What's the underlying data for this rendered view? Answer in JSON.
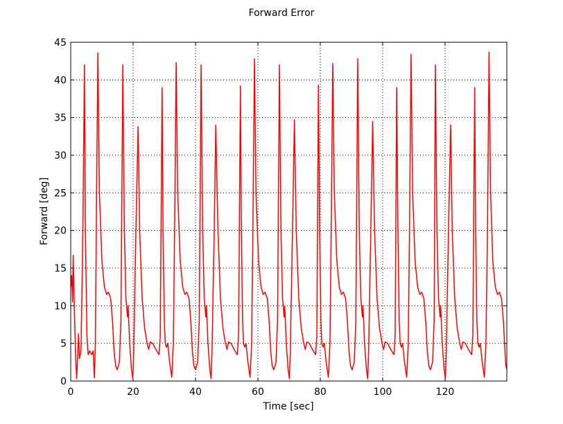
{
  "chart_data": {
    "type": "line",
    "title": "Forward Error",
    "xlabel": "Time [sec]",
    "ylabel": "Forward [deg]",
    "xlim": [
      0,
      139.8
    ],
    "ylim": [
      0,
      45
    ],
    "xticks": [
      0,
      20,
      40,
      60,
      80,
      100,
      120
    ],
    "yticks": [
      0,
      5,
      10,
      15,
      20,
      25,
      30,
      35,
      40,
      45
    ],
    "grid": true,
    "series": [
      {
        "color": "#ff0000",
        "x": [
          0,
          0.3,
          0.6,
          0.8,
          1.2,
          1.6,
          1.9,
          2.2,
          2.5,
          2.8,
          3.3,
          3.9,
          4.4,
          4.7,
          5.2,
          5.6,
          6.1,
          6.8,
          7.2,
          7.6,
          7.9,
          8.2,
          8.7,
          9.2,
          10.0,
          10.8,
          11.5,
          12.1,
          12.8,
          13.4,
          13.9,
          14.4,
          14.9,
          15.6,
          16.1,
          16.7,
          17.2,
          17.7,
          18.2,
          18.4,
          18.9,
          19.5,
          19.9,
          20.2,
          20.9,
          21.6,
          22.1,
          22.9,
          23.7,
          24.5,
          25.0,
          25.5,
          26.3,
          27.3,
          28.3,
          28.7,
          29.3,
          29.6,
          30.0,
          30.3,
          30.7,
          31.1,
          31.7,
          32.4,
          32.9,
          33.3,
          33.8,
          34.3,
          35.1,
          35.9,
          36.6,
          37.2,
          37.9,
          38.5,
          39.0,
          39.5,
          40.0,
          40.7,
          41.2,
          41.8,
          42.3,
          42.8,
          43.3,
          43.5,
          44.0,
          44.6,
          45.0,
          45.3,
          46.0,
          46.5,
          47.2,
          48.0,
          48.8,
          49.6,
          50.1,
          50.6,
          51.4,
          52.4,
          53.4,
          53.8,
          54.4,
          54.7,
          55.1,
          55.4,
          55.8,
          56.2,
          56.8,
          57.5,
          58.0,
          58.4,
          58.9,
          59.4,
          60.2,
          61.0,
          61.7,
          62.3,
          63.0,
          63.6,
          64.1,
          64.6,
          65.1,
          65.8,
          66.3,
          66.9,
          67.4,
          67.9,
          68.4,
          68.6,
          69.1,
          69.7,
          70.1,
          70.4,
          71.1,
          71.7,
          72.3,
          73.1,
          73.9,
          74.7,
          75.2,
          75.7,
          76.5,
          77.5,
          78.5,
          78.9,
          79.4,
          79.8,
          80.2,
          80.5,
          80.9,
          81.3,
          81.9,
          82.6,
          83.1,
          83.5,
          84.0,
          84.5,
          85.3,
          86.1,
          86.8,
          87.4,
          88.1,
          88.7,
          89.2,
          89.7,
          90.2,
          90.9,
          91.4,
          92.0,
          92.5,
          93.0,
          93.5,
          93.7,
          94.2,
          94.8,
          95.2,
          95.5,
          96.2,
          96.8,
          97.4,
          98.2,
          99.0,
          99.8,
          100.3,
          100.8,
          101.6,
          102.6,
          103.6,
          104.0,
          104.5,
          104.9,
          105.3,
          105.6,
          106.0,
          106.4,
          107.0,
          107.7,
          108.2,
          108.6,
          109.1,
          109.6,
          110.4,
          111.2,
          111.9,
          112.5,
          113.2,
          113.8,
          114.3,
          114.8,
          115.3,
          116.0,
          116.5,
          116.9,
          117.4,
          117.9,
          118.4,
          118.6,
          119.1,
          119.7,
          120.1,
          120.4,
          121.1,
          121.8,
          122.3,
          123.1,
          123.9,
          124.7,
          125.2,
          125.7,
          126.5,
          127.5,
          128.5,
          128.9,
          129.5,
          129.8,
          130.2,
          130.5,
          130.9,
          131.3,
          131.9,
          132.6,
          133.1,
          133.6,
          134.1,
          134.6,
          135.3,
          136.1,
          136.8,
          137.4,
          138.1,
          138.7,
          139.2,
          139.5,
          139.8
        ],
        "values": [
          12.5,
          14,
          10.5,
          16.7,
          9,
          3,
          0.3,
          3,
          6.3,
          3,
          4,
          20,
          42,
          20,
          6,
          3.5,
          4,
          3.5,
          4,
          0.4,
          5,
          20,
          43.6,
          25,
          16,
          12.5,
          11.5,
          11.8,
          11,
          8,
          4,
          2,
          1.5,
          2.5,
          8,
          42,
          20,
          11,
          8.5,
          10,
          5,
          1.5,
          0.3,
          4,
          20,
          33.8,
          20,
          11,
          7,
          5,
          4.2,
          5.2,
          5,
          4.2,
          3.5,
          6,
          39,
          20,
          8,
          5,
          4.5,
          5,
          2.5,
          0.5,
          5,
          20,
          42.3,
          25,
          16,
          12.5,
          11.5,
          11.8,
          11,
          8,
          4,
          2,
          1.5,
          2.5,
          8,
          42,
          20,
          11,
          8.5,
          10,
          5,
          1.5,
          0.3,
          4,
          20,
          34,
          20,
          11,
          7,
          5,
          4.2,
          5.2,
          5,
          4.2,
          3.5,
          6,
          39.2,
          20,
          8,
          5,
          4.5,
          5,
          2.5,
          0.5,
          5,
          20,
          42.8,
          25,
          16,
          12.5,
          11.5,
          11.8,
          11,
          8,
          4,
          2,
          1.5,
          2.5,
          8,
          42,
          20,
          11,
          8.5,
          10,
          5,
          1.5,
          0.3,
          4,
          20,
          34.7,
          20,
          11,
          7,
          5,
          4.2,
          5.2,
          5,
          4.2,
          3.5,
          6,
          39.3,
          20,
          8,
          5,
          4.5,
          5,
          2.5,
          0.5,
          5,
          20,
          42.2,
          25,
          16,
          12.5,
          11.5,
          11.8,
          11,
          8,
          4,
          2,
          1.5,
          2.5,
          8,
          42.8,
          20,
          11,
          8.5,
          10,
          5,
          1.5,
          0.3,
          4,
          20,
          34.5,
          20,
          11,
          7,
          5,
          4.2,
          5.2,
          5,
          4.2,
          3.5,
          6,
          39,
          20,
          8,
          5,
          4.5,
          5,
          2.5,
          0.5,
          5,
          20,
          43.4,
          25,
          16,
          12.5,
          11.5,
          11.8,
          11,
          8,
          4,
          2,
          1.5,
          2.5,
          8,
          42,
          20,
          11,
          8.5,
          10,
          5,
          1.5,
          0.3,
          4,
          20,
          34,
          20,
          11,
          7,
          5,
          4.2,
          5.2,
          5,
          4.2,
          3.5,
          6,
          39,
          20,
          8,
          5,
          4.5,
          5,
          2.5,
          0.5,
          5,
          20,
          43.7,
          25,
          16,
          12.5,
          11.5,
          11.8,
          11,
          8,
          4,
          2,
          1.6
        ]
      }
    ]
  }
}
